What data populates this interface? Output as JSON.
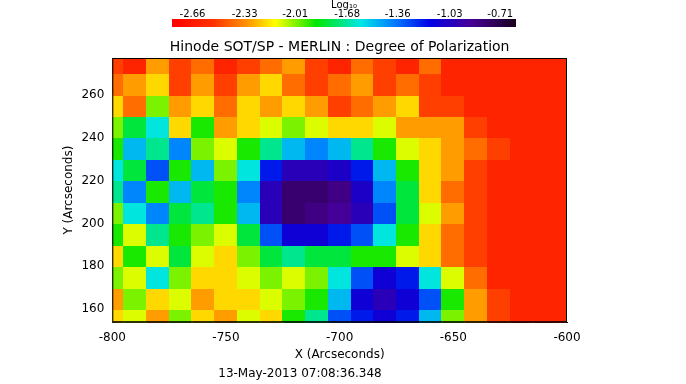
{
  "chart_data": {
    "type": "heatmap",
    "title": "Hinode SOT/SP - MERLIN : Degree of Polarization",
    "x_label": "X (Arcseconds)",
    "y_label": "Y (Arcseconds)",
    "annotations": [
      "13-May-2013 07:08:36.348"
    ],
    "xlim": [
      -800,
      -600
    ],
    "xticks": [
      -800,
      -750,
      -700,
      -650,
      -600
    ],
    "ylim": [
      154,
      277
    ],
    "yticks": [
      160,
      180,
      200,
      220,
      240,
      260
    ],
    "grid": false,
    "colorbar": {
      "label": "Log₁₀",
      "range": [
        -2.79,
        -0.61
      ],
      "ticks": [
        -2.66,
        -2.33,
        -2.01,
        -1.68,
        -1.36,
        -1.03,
        -0.71
      ]
    },
    "x": [
      -800,
      -790,
      -780,
      -770,
      -760,
      -750,
      -740,
      -730,
      -720,
      -710,
      -700,
      -690,
      -680,
      -670,
      -660,
      -650,
      -640,
      -630,
      -620,
      -610,
      -600
    ],
    "y": [
      155,
      165,
      175,
      185,
      195,
      205,
      215,
      225,
      235,
      245,
      255,
      265,
      275
    ],
    "z": [
      [
        -2.2,
        -2.1,
        -2.3,
        -2.0,
        -2.2,
        -2.3,
        -2.1,
        -2.2,
        -1.9,
        -1.7,
        -1.3,
        -1.2,
        -1.1,
        -1.2,
        -1.5,
        -2.0,
        -2.3,
        -2.5,
        -2.6,
        -2.6,
        -2.6
      ],
      [
        -2.3,
        -2.0,
        -2.2,
        -2.1,
        -2.3,
        -2.2,
        -2.2,
        -2.1,
        -2.0,
        -1.9,
        -1.5,
        -1.1,
        -1.0,
        -1.1,
        -1.3,
        -1.9,
        -2.3,
        -2.5,
        -2.6,
        -2.6,
        -2.6
      ],
      [
        -2.0,
        -2.1,
        -1.6,
        -2.0,
        -2.2,
        -2.2,
        -2.1,
        -2.0,
        -2.1,
        -2.0,
        -1.6,
        -1.3,
        -1.1,
        -1.2,
        -1.6,
        -2.1,
        -2.4,
        -2.6,
        -2.6,
        -2.6,
        -2.6
      ],
      [
        -2.2,
        -1.9,
        -2.1,
        -1.8,
        -2.1,
        -2.2,
        -2.0,
        -1.8,
        -1.7,
        -1.8,
        -1.8,
        -1.9,
        -1.9,
        -2.1,
        -2.2,
        -2.4,
        -2.5,
        -2.6,
        -2.6,
        -2.6,
        -2.6
      ],
      [
        -1.9,
        -2.1,
        -1.7,
        -1.9,
        -2.0,
        -2.1,
        -1.8,
        -1.3,
        -1.1,
        -1.1,
        -1.2,
        -1.3,
        -1.6,
        -1.9,
        -2.2,
        -2.4,
        -2.5,
        -2.6,
        -2.6,
        -2.6,
        -2.6
      ],
      [
        -2.0,
        -1.6,
        -1.4,
        -1.8,
        -1.7,
        -1.9,
        -1.5,
        -1.0,
        -0.8,
        -0.85,
        -0.9,
        -1.0,
        -1.3,
        -1.8,
        -2.1,
        -2.3,
        -2.5,
        -2.6,
        -2.6,
        -2.6,
        -2.6
      ],
      [
        -1.7,
        -1.4,
        -1.9,
        -1.5,
        -1.8,
        -1.9,
        -1.4,
        -1.0,
        -0.8,
        -0.8,
        -0.85,
        -1.05,
        -1.4,
        -1.8,
        -2.2,
        -2.4,
        -2.5,
        -2.6,
        -2.6,
        -2.6,
        -2.6
      ],
      [
        -1.6,
        -1.8,
        -1.3,
        -1.9,
        -1.5,
        -2.0,
        -1.6,
        -1.2,
        -1.0,
        -1.0,
        -1.05,
        -1.2,
        -1.5,
        -1.9,
        -2.2,
        -2.3,
        -2.5,
        -2.6,
        -2.6,
        -2.6,
        -2.6
      ],
      [
        -1.9,
        -1.5,
        -1.7,
        -1.4,
        -2.0,
        -2.1,
        -1.9,
        -1.7,
        -1.5,
        -1.4,
        -1.5,
        -1.7,
        -1.9,
        -2.1,
        -2.2,
        -2.3,
        -2.4,
        -2.5,
        -2.6,
        -2.6,
        -2.6
      ],
      [
        -2.0,
        -1.8,
        -1.6,
        -2.2,
        -1.9,
        -2.3,
        -2.2,
        -2.1,
        -2.0,
        -2.1,
        -2.2,
        -2.2,
        -2.1,
        -2.3,
        -2.3,
        -2.3,
        -2.5,
        -2.6,
        -2.6,
        -2.6,
        -2.6
      ],
      [
        -2.2,
        -2.4,
        -2.0,
        -2.3,
        -2.2,
        -2.4,
        -2.2,
        -2.3,
        -2.2,
        -2.3,
        -2.5,
        -2.4,
        -2.3,
        -2.2,
        -2.5,
        -2.5,
        -2.6,
        -2.6,
        -2.6,
        -2.6,
        -2.6
      ],
      [
        -2.4,
        -2.3,
        -2.2,
        -2.5,
        -2.3,
        -2.5,
        -2.3,
        -2.2,
        -2.4,
        -2.5,
        -2.4,
        -2.3,
        -2.5,
        -2.4,
        -2.5,
        -2.6,
        -2.6,
        -2.6,
        -2.6,
        -2.6,
        -2.6
      ],
      [
        -2.5,
        -2.6,
        -2.3,
        -2.5,
        -2.4,
        -2.6,
        -2.5,
        -2.4,
        -2.3,
        -2.5,
        -2.6,
        -2.4,
        -2.5,
        -2.6,
        -2.4,
        -2.6,
        -2.6,
        -2.6,
        -2.6,
        -2.6,
        -2.6
      ]
    ]
  }
}
